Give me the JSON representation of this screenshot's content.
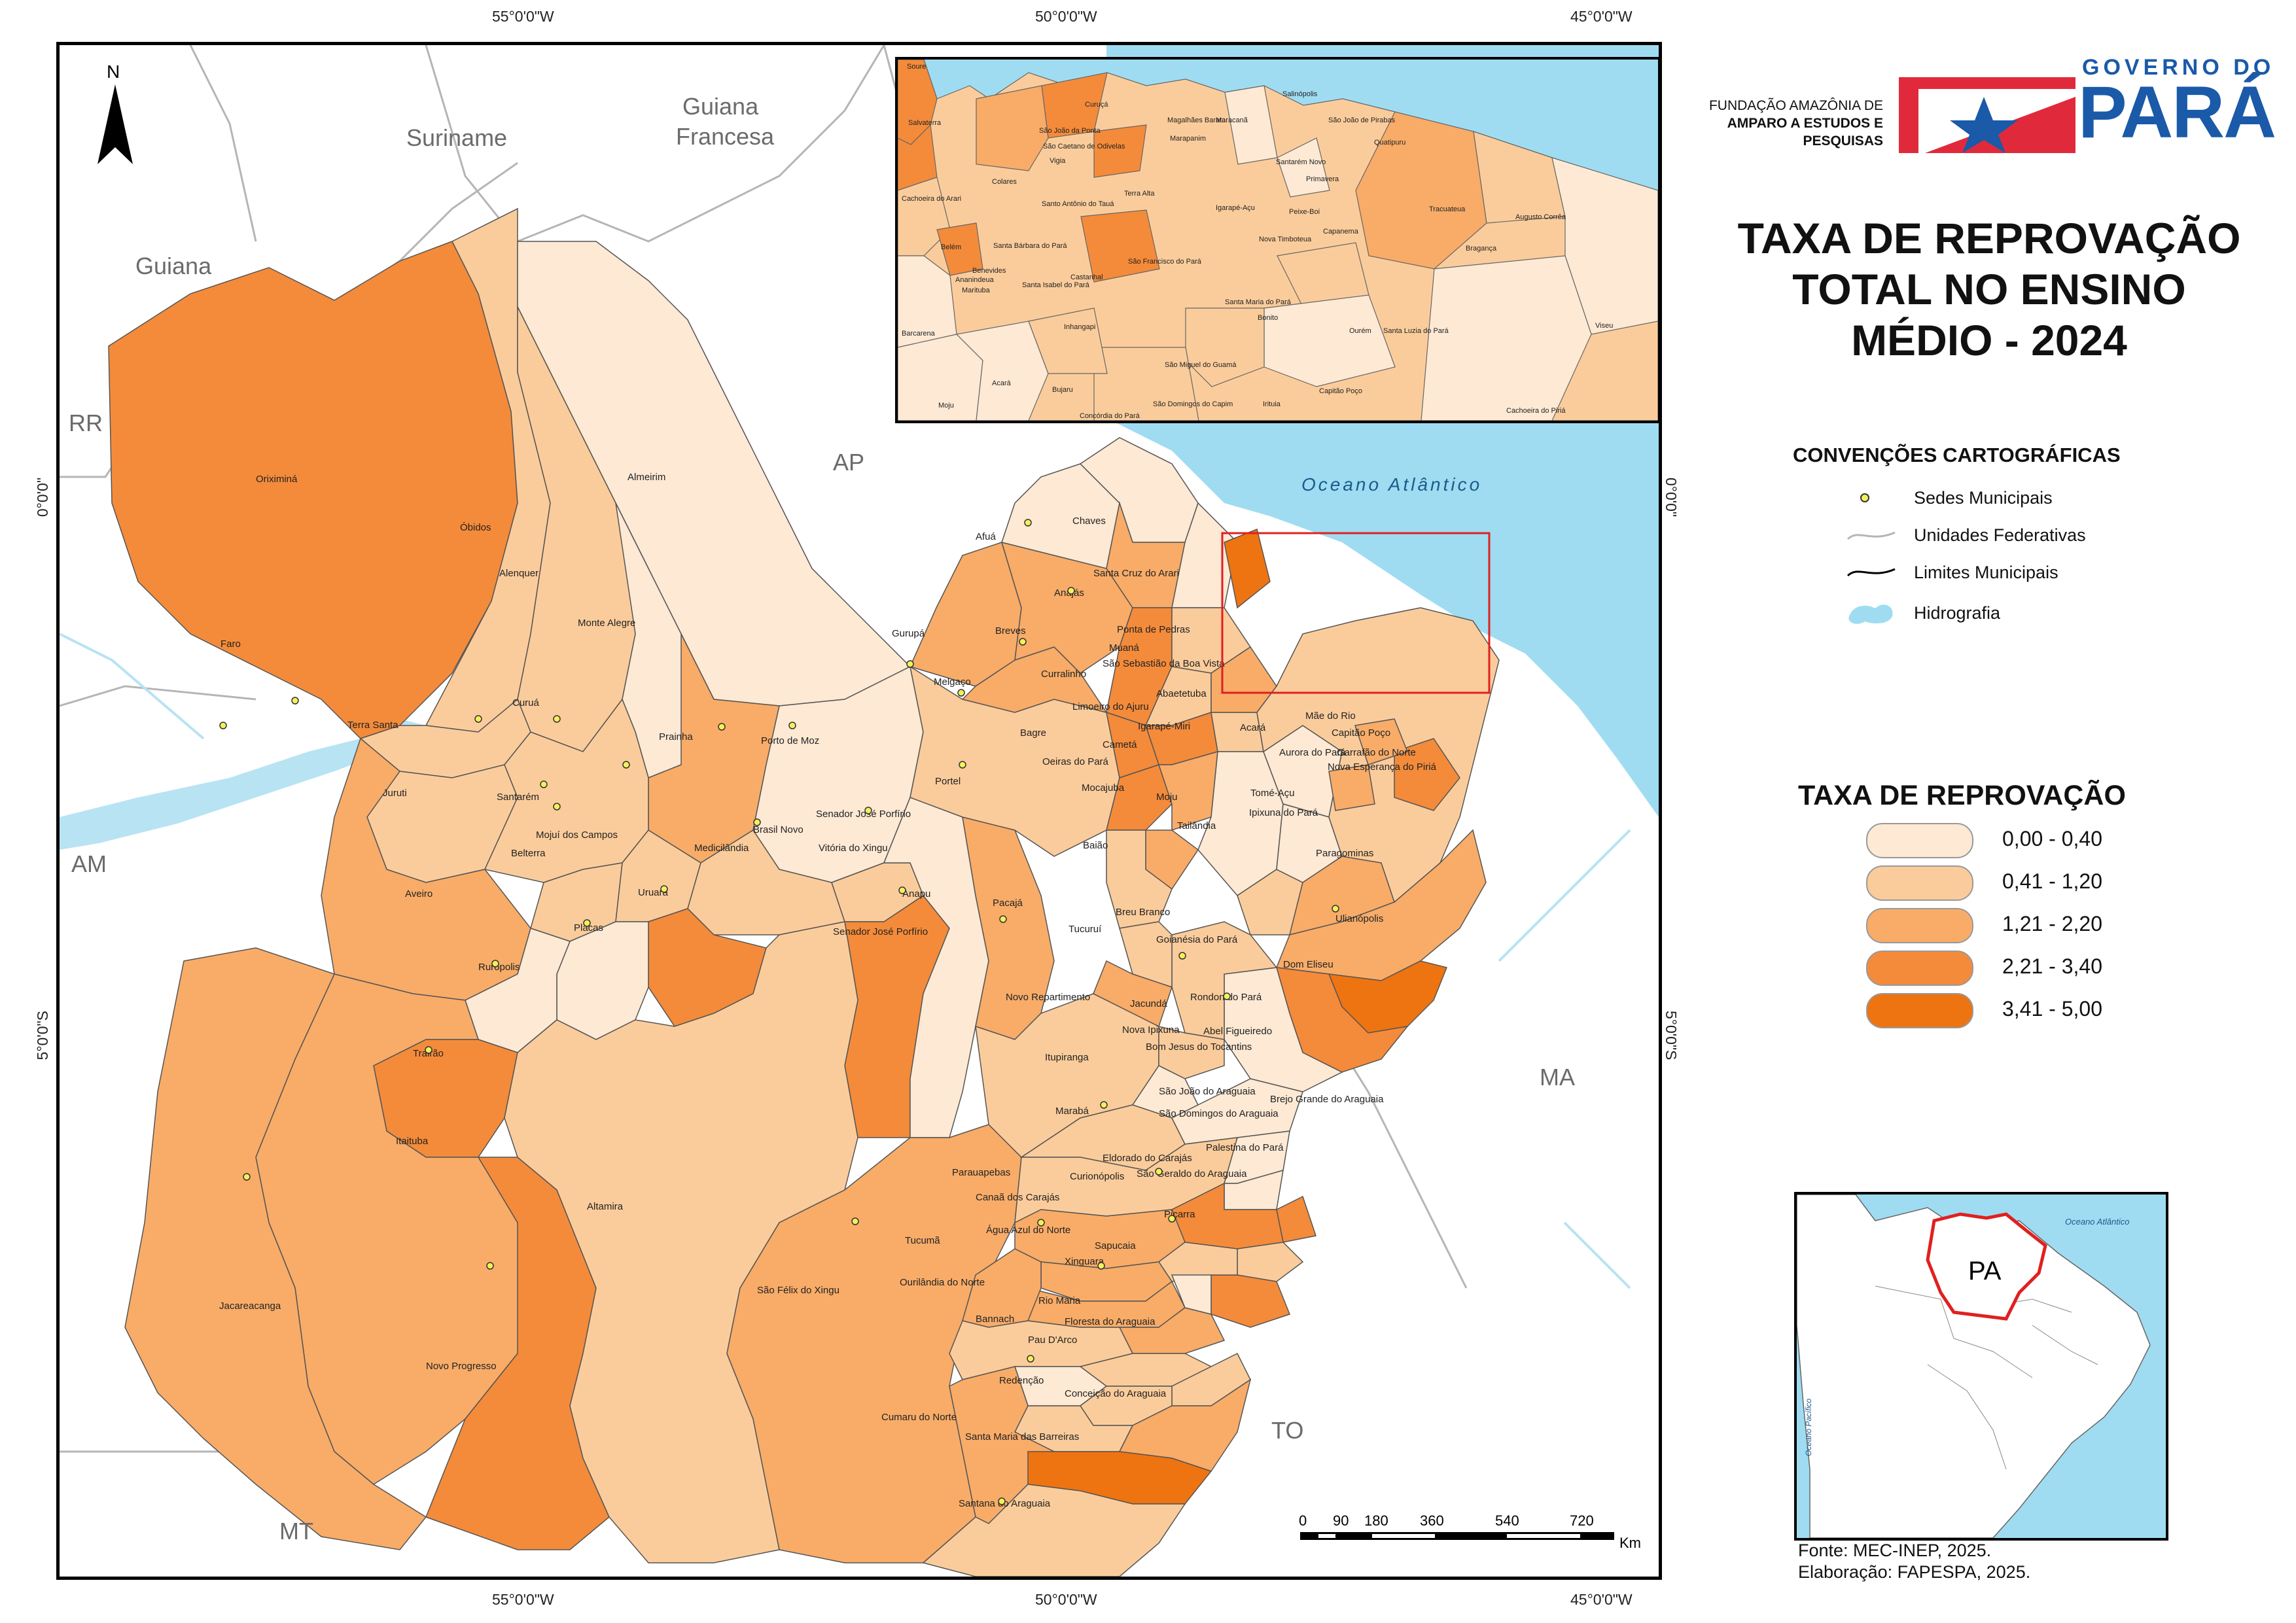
{
  "title": {
    "line1": "TAXA DE REPROVAÇÃO",
    "line2": "TOTAL NO ENSINO",
    "line3": "MÉDIO - 2024"
  },
  "organization": {
    "line1": "FUNDAÇÃO AMAZÔNIA DE",
    "line2": "AMPARO A ESTUDOS E",
    "line3": "PESQUISAS",
    "gov_top": "GOVERNO DO",
    "gov_bottom": "PARÁ"
  },
  "coords": {
    "top": [
      "55°0'0\"W",
      "50°0'0\"W",
      "45°0'0\"W"
    ],
    "bottom": [
      "55°0'0\"W",
      "50°0'0\"W",
      "45°0'0\"W"
    ],
    "left": [
      "0°0'0\"",
      "5°0'0\"S"
    ],
    "right": [
      "0°0'0\"",
      "5°0'0\"S"
    ]
  },
  "north_arrow": "N",
  "countries": {
    "suriname": "Suriname",
    "guiana_francesa_1": "Guiana",
    "guiana_francesa_2": "Francesa",
    "guiana": "Guiana"
  },
  "states": {
    "rr": "RR",
    "ap": "AP",
    "am": "AM",
    "ma": "MA",
    "to": "TO",
    "mt": "MT"
  },
  "ocean": "Oceano Atlântico",
  "conventions": {
    "title": "CONVENÇÕES CARTOGRÁFICAS",
    "items": [
      "Sedes Municipais",
      "Unidades Federativas",
      "Limites Municipais",
      "Hidrografia"
    ]
  },
  "legend": {
    "title": "TAXA DE REPROVAÇÃO",
    "classes": [
      {
        "label": "0,00 - 0,40",
        "color": "#fde9d4"
      },
      {
        "label": "0,41 - 1,20",
        "color": "#fbcc9b"
      },
      {
        "label": "1,21 - 2,20",
        "color": "#f8ac68"
      },
      {
        "label": "2,21 - 3,40",
        "color": "#f48b3a"
      },
      {
        "label": "3,41 - 5,00",
        "color": "#ee7411"
      }
    ]
  },
  "scale": {
    "ticks": [
      "0",
      "90",
      "180",
      "360",
      "540",
      "720"
    ],
    "unit": "Km"
  },
  "locator": {
    "state_label": "PA",
    "ocean_atl": "Oceano Atlântico",
    "ocean_pac": "Oceano Pacífico"
  },
  "source": {
    "line1": "Fonte: MEC-INEP, 2025.",
    "line2": "Elaboração: FAPESPA, 2025."
  },
  "municipalities": [
    "Oriximiná",
    "Óbidos",
    "Almeirim",
    "Alenquer",
    "Monte Alegre",
    "Faro",
    "Terra Santa",
    "Curuá",
    "Prainha",
    "Porto de Moz",
    "Juruti",
    "Santarém",
    "Belterra",
    "Mojuí dos Campos",
    "Medicilândia",
    "Brasil Novo",
    "Vitória do Xingu",
    "Senador José Porfírio",
    "Uruará",
    "Aveiro",
    "Placas",
    "Rurópolis",
    "Trairão",
    "Itaituba",
    "Jacareacanga",
    "Novo Progresso",
    "Altamira",
    "São Félix do Xingu",
    "Anapu",
    "Pacajá",
    "Portel",
    "Gurupá",
    "Melgaço",
    "Breves",
    "Afuá",
    "Chaves",
    "Anajás",
    "Curralinho",
    "Bagre",
    "Oeiras do Pará",
    "Baião",
    "Mocajuba",
    "Cametá",
    "Limoeiro do Ajuru",
    "Igarapé-Miri",
    "Abaetetuba",
    "Moju",
    "Tailândia",
    "Acará",
    "Tomé-Açu",
    "Ipixuna do Pará",
    "Paragominas",
    "Ulianópolis",
    "Dom Eliseu",
    "Rondon do Pará",
    "Goianésia do Pará",
    "Breu Branco",
    "Tucuruí",
    "Novo Repartimento",
    "Jacundá",
    "Nova Ipixuna",
    "Abel Figueiredo",
    "Bom Jesus do Tocantins",
    "Itupiranga",
    "Marabá",
    "São João do Araguaia",
    "São Domingos do Araguaia",
    "Brejo Grande do Araguaia",
    "Palestina do Pará",
    "Eldorado do Carajás",
    "São Geraldo do Araguaia",
    "Piçarra",
    "Parauapebas",
    "Curionópolis",
    "Canaã dos Carajás",
    "Água Azul do Norte",
    "Tucumã",
    "Sapucaia",
    "Xinguara",
    "Ourilândia do Norte",
    "Rio Maria",
    "Bannach",
    "Floresta do Araguaia",
    "Pau D'Arco",
    "Redenção",
    "Conceição do Araguaia",
    "Cumaru do Norte",
    "Santa Maria das Barreiras",
    "Santana do Araguaia",
    "Santa Cruz do Arari",
    "Ponta de Pedras",
    "Muaná",
    "São Sebastião da Boa Vista",
    "Mãe do Rio",
    "Capitão Poço",
    "Aurora do Pará",
    "Garrafão do Norte",
    "Nova Esperança do Piriá"
  ],
  "inset_municipalities": [
    "Soure",
    "Salvaterra",
    "Cachoeira do Arari",
    "Belém",
    "Ananindeua",
    "Barcarena",
    "Moju",
    "Acará",
    "Curuçá",
    "Marapanim",
    "Magalhães Barata",
    "Maracanã",
    "Salinópolis",
    "São João de Pirabas",
    "Quatipuru",
    "Primavera",
    "Santarém Novo",
    "São João da Ponta",
    "São Caetano de Odivelas",
    "Vigia",
    "Colares",
    "Terra Alta",
    "Santo Antônio do Tauá",
    "Santa Bárbara do Pará",
    "Benevides",
    "Marituba",
    "Santa Isabel do Pará",
    "Castanhal",
    "São Francisco do Pará",
    "Igarapé-Açu",
    "Nova Timboteua",
    "Peixe-Boi",
    "Capanema",
    "Tracuateua",
    "Bragança",
    "Augusto Corrêa",
    "Viseu",
    "Inhangapi",
    "Santa Maria do Pará",
    "Bonito",
    "Ourém",
    "Santa Luzia do Pará",
    "São Miguel do Guamá",
    "Bujaru",
    "São Domingos do Capim",
    "Irituia",
    "Capitão Poço",
    "Cachoeira do Piriá",
    "Concórdia do Pará"
  ]
}
